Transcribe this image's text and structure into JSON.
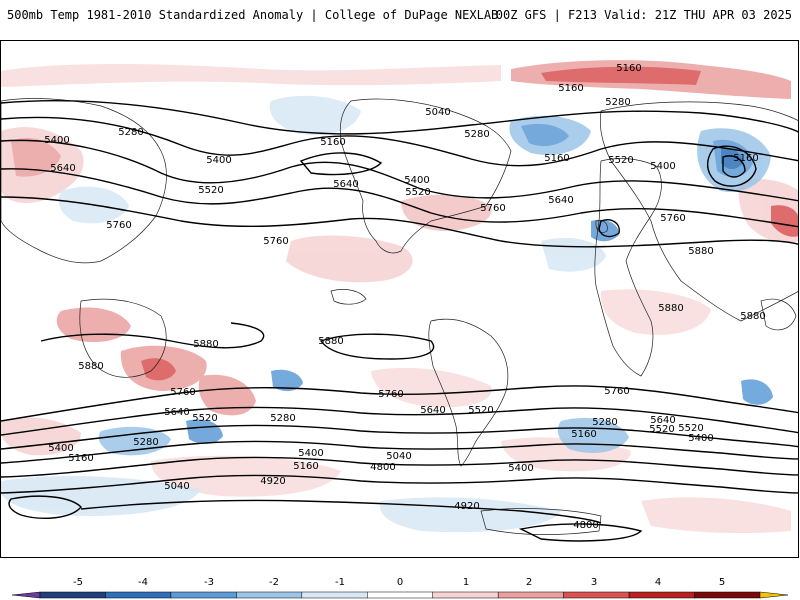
{
  "header": {
    "title": "500mb Temp 1981-2010 Standardized Anomaly | College of DuPage NEXLAB",
    "run_info": "00Z GFS | F213 Valid: 21Z THU APR 03 2025"
  },
  "colors": {
    "frame": "#000000",
    "contour": "#000000",
    "coast": "#222222"
  },
  "colorbar": {
    "ticks": [
      "-5",
      "-4",
      "-3",
      "-2",
      "-1",
      "0",
      "1",
      "2",
      "3",
      "4",
      "5"
    ],
    "colors": [
      "#6a3d9a",
      "#1f3f7a",
      "#2f6fb8",
      "#5d9bd6",
      "#9cc5e8",
      "#d7e7f5",
      "#ffffff",
      "#f6d2d2",
      "#eba0a0",
      "#d95353",
      "#b81f1f",
      "#7a0a0a",
      "#f5c400"
    ]
  },
  "contour_labels": [
    {
      "text": "5160"
    },
    {
      "text": "5160"
    },
    {
      "text": "5280"
    },
    {
      "text": "5040"
    },
    {
      "text": "5280"
    },
    {
      "text": "5160"
    },
    {
      "text": "5280"
    },
    {
      "text": "5160"
    },
    {
      "text": "5520"
    },
    {
      "text": "5400"
    },
    {
      "text": "5400"
    },
    {
      "text": "5400"
    },
    {
      "text": "5640"
    },
    {
      "text": "5400"
    },
    {
      "text": "5160"
    },
    {
      "text": "5520"
    },
    {
      "text": "5640"
    },
    {
      "text": "5520"
    },
    {
      "text": "5760"
    },
    {
      "text": "5640"
    },
    {
      "text": "5760"
    },
    {
      "text": "5760"
    },
    {
      "text": "5760"
    },
    {
      "text": "5880"
    },
    {
      "text": "5880"
    },
    {
      "text": "5880"
    },
    {
      "text": "5880"
    },
    {
      "text": "5880"
    },
    {
      "text": "5880"
    },
    {
      "text": "5760"
    },
    {
      "text": "5760"
    },
    {
      "text": "5640"
    },
    {
      "text": "5640"
    },
    {
      "text": "5520"
    },
    {
      "text": "5520"
    },
    {
      "text": "5280"
    },
    {
      "text": "5280"
    },
    {
      "text": "5280"
    },
    {
      "text": "5160"
    },
    {
      "text": "5400"
    },
    {
      "text": "5160"
    },
    {
      "text": "5400"
    },
    {
      "text": "5040"
    },
    {
      "text": "5160"
    },
    {
      "text": "5040"
    },
    {
      "text": "4800"
    },
    {
      "text": "4920"
    },
    {
      "text": "5400"
    },
    {
      "text": "4920"
    },
    {
      "text": "4800"
    },
    {
      "text": "5760"
    },
    {
      "text": "5640"
    },
    {
      "text": "5520"
    },
    {
      "text": "5400"
    },
    {
      "text": "5520"
    }
  ]
}
